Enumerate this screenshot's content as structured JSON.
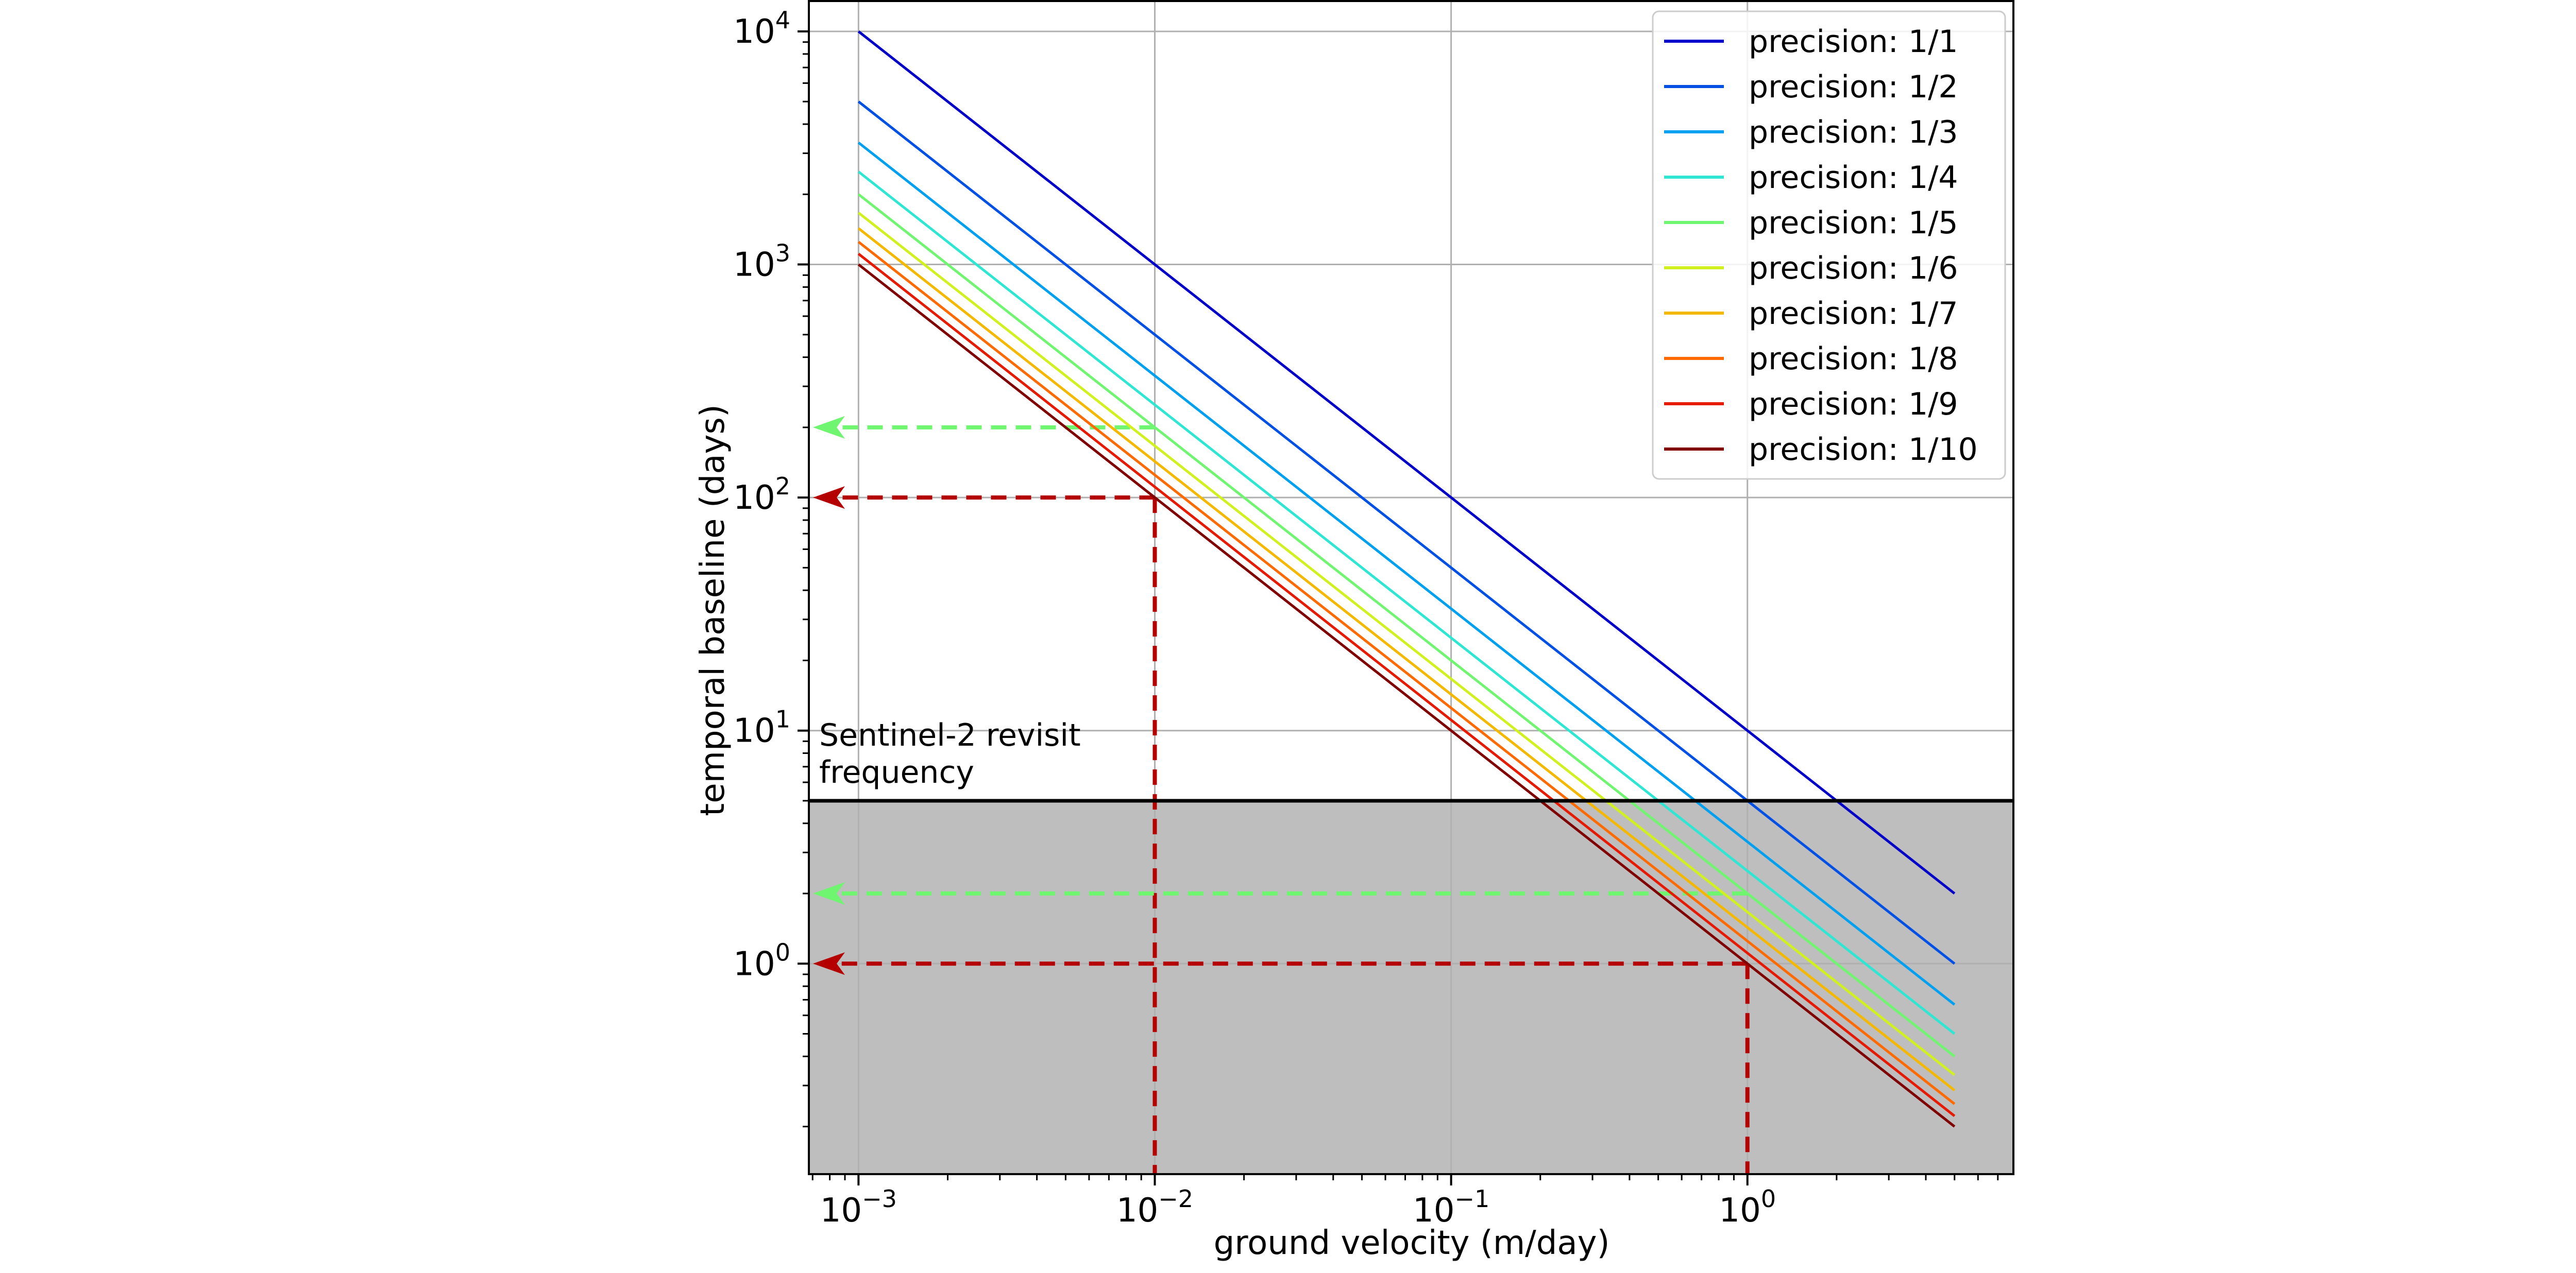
{
  "chart_data": {
    "type": "line",
    "xlabel": "ground velocity (m/day)",
    "ylabel": "temporal baseline (days)",
    "x_scale": "log",
    "y_scale": "log",
    "xlim": [
      0.00068,
      7.9
    ],
    "ylim": [
      0.125,
      13500
    ],
    "grid": true,
    "legend_position": "top-right",
    "x_ticks": [
      {
        "base": "10",
        "exp": "−3",
        "value": 0.001
      },
      {
        "base": "10",
        "exp": "−2",
        "value": 0.01
      },
      {
        "base": "10",
        "exp": "−1",
        "value": 0.1
      },
      {
        "base": "10",
        "exp": "0",
        "value": 1
      }
    ],
    "y_ticks": [
      {
        "base": "10",
        "exp": "0",
        "value": 1
      },
      {
        "base": "10",
        "exp": "1",
        "value": 10
      },
      {
        "base": "10",
        "exp": "2",
        "value": 100
      },
      {
        "base": "10",
        "exp": "3",
        "value": 1000
      },
      {
        "base": "10",
        "exp": "4",
        "value": 10000
      }
    ],
    "x": [
      0.001,
      5
    ],
    "series": [
      {
        "name": "precision: 1/1",
        "values": [
          10000,
          2
        ],
        "color": "#0000c8"
      },
      {
        "name": "precision: 1/2",
        "values": [
          5000,
          1
        ],
        "color": "#0050e6"
      },
      {
        "name": "precision: 1/3",
        "values": [
          3333,
          0.667
        ],
        "color": "#00a0f0"
      },
      {
        "name": "precision: 1/4",
        "values": [
          2500,
          0.5
        ],
        "color": "#2ee6d2"
      },
      {
        "name": "precision: 1/5",
        "values": [
          2000,
          0.4
        ],
        "color": "#70f570"
      },
      {
        "name": "precision: 1/6",
        "values": [
          1667,
          0.333
        ],
        "color": "#d2f020"
      },
      {
        "name": "precision: 1/7",
        "values": [
          1429,
          0.286
        ],
        "color": "#f5b800"
      },
      {
        "name": "precision: 1/8",
        "values": [
          1250,
          0.25
        ],
        "color": "#ff6a00"
      },
      {
        "name": "precision: 1/9",
        "values": [
          1111,
          0.222
        ],
        "color": "#e61a00"
      },
      {
        "name": "precision: 1/10",
        "values": [
          1000,
          0.2
        ],
        "color": "#800000"
      }
    ],
    "threshold": {
      "y": 5,
      "label_line1": "Sentinel-2 revisit",
      "label_line2": "frequency",
      "shade_color": "#bebebe"
    },
    "guides": [
      {
        "x": 0.01,
        "y": 100,
        "color": "#b40000",
        "vertical": true
      },
      {
        "x": 1,
        "y": 1,
        "color": "#b40000",
        "vertical": true
      },
      {
        "x": 0.01,
        "y": 200,
        "color": "#70f570",
        "vertical": false
      },
      {
        "x": 1,
        "y": 2,
        "color": "#70f570",
        "vertical": false
      }
    ]
  }
}
